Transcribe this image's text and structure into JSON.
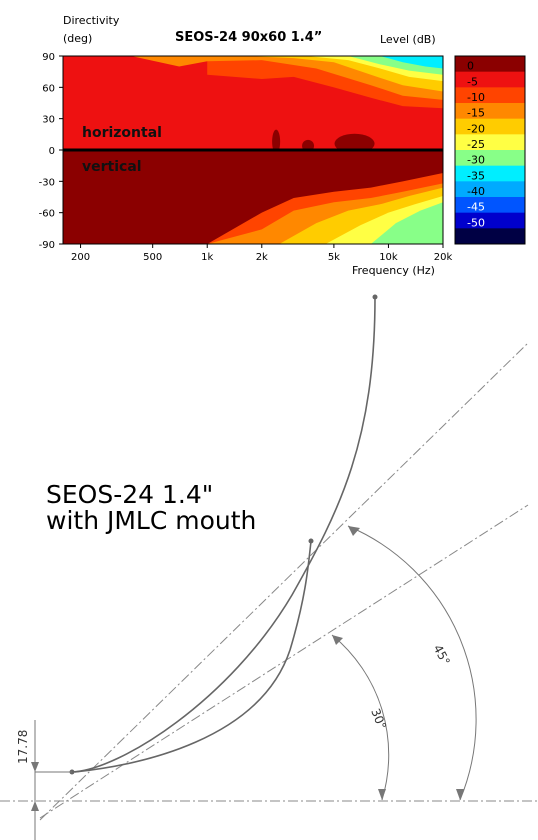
{
  "chart_data": {
    "type": "heatmap",
    "title": "SEOS-24 90x60 1.4”",
    "ylabel_line1": "Directivity",
    "ylabel_line2": "(deg)",
    "xlabel": "Frequency  (Hz)",
    "colorbar_label": "Level  (dB)",
    "x_scale": "log",
    "xlim": [
      160,
      20000
    ],
    "ylim": [
      -90,
      90
    ],
    "x_ticks": [
      "200",
      "500",
      "1k",
      "2k",
      "5k",
      "10k",
      "20k"
    ],
    "y_ticks": [
      "90",
      "60",
      "30",
      "0",
      "-30",
      "-60",
      "-90"
    ],
    "colorbar_levels": [
      "0",
      "-5",
      "-10",
      "-15",
      "-20",
      "-25",
      "-30",
      "-35",
      "-40",
      "-45",
      "-50"
    ],
    "colorbar_colors": [
      "#8b0000",
      "#ee1111",
      "#ff4400",
      "#ff8800",
      "#ffcc00",
      "#ffff44",
      "#88ff88",
      "#00eeff",
      "#00aaff",
      "#0055ff",
      "#0000cc",
      "#000044"
    ],
    "region_labels": {
      "upper": "horizontal",
      "lower": "vertical"
    },
    "contours_horizontal": [
      {
        "level": -5,
        "freq": [
          1000,
          2000,
          3000,
          5000,
          8000,
          12000,
          20000
        ],
        "angle": [
          72,
          68,
          70,
          60,
          50,
          42,
          40
        ]
      },
      {
        "level": -10,
        "freq": [
          380,
          700,
          1000,
          2000,
          4000,
          8000,
          12000,
          20000
        ],
        "angle": [
          90,
          80,
          85,
          86,
          78,
          62,
          52,
          48
        ]
      },
      {
        "level": -15,
        "freq": [
          1600,
          3000,
          5000,
          8000,
          12000,
          20000
        ],
        "angle": [
          90,
          88,
          84,
          72,
          62,
          56
        ]
      },
      {
        "level": -20,
        "freq": [
          3500,
          6000,
          9000,
          13000,
          20000
        ],
        "angle": [
          90,
          86,
          78,
          70,
          66
        ]
      },
      {
        "level": -25,
        "freq": [
          6000,
          9000,
          13000,
          20000
        ],
        "angle": [
          90,
          82,
          76,
          72
        ]
      },
      {
        "level": -30,
        "freq": [
          9000,
          12000,
          16000,
          20000
        ],
        "angle": [
          90,
          84,
          80,
          78
        ]
      }
    ],
    "contours_vertical": [
      {
        "level": -5,
        "freq": [
          1000,
          2000,
          3000,
          5000,
          8000,
          12000,
          20000
        ],
        "angle": [
          -90,
          -60,
          -46,
          -40,
          -36,
          -30,
          -22
        ]
      },
      {
        "level": -10,
        "freq": [
          1000,
          2000,
          3000,
          5000,
          8000,
          12000,
          20000
        ],
        "angle": [
          -90,
          -76,
          -58,
          -50,
          -46,
          -40,
          -32
        ]
      },
      {
        "level": -15,
        "freq": [
          2500,
          4000,
          6000,
          9000,
          13000,
          20000
        ],
        "angle": [
          -90,
          -70,
          -58,
          -52,
          -44,
          -36
        ]
      },
      {
        "level": -20,
        "freq": [
          4500,
          7000,
          10000,
          14000,
          20000
        ],
        "angle": [
          -90,
          -72,
          -60,
          -52,
          -44
        ]
      },
      {
        "level": -25,
        "freq": [
          8000,
          11000,
          15000,
          20000
        ],
        "angle": [
          -90,
          -70,
          -58,
          -50
        ]
      }
    ]
  },
  "drawing": {
    "title_line1": "SEOS-24 1.4\"",
    "title_line2": "with JMLC mouth",
    "dimension_value": "17.78",
    "angle_inner": "30°",
    "angle_outer": "45°"
  }
}
